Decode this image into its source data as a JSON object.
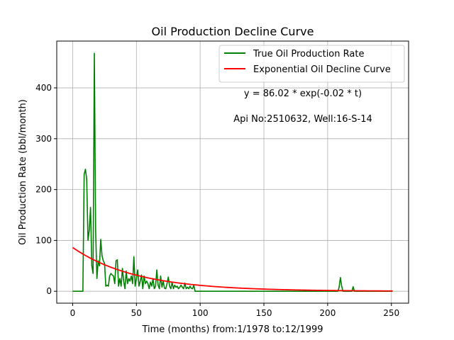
{
  "chart_data": {
    "type": "line",
    "title": "Oil Production Decline Curve",
    "xlabel": "Time (months) from:1/1978 to:12/1999",
    "ylabel": "Oil Production Rate (bbl/month)",
    "xlim": [
      -12.5,
      263.5
    ],
    "ylim": [
      -23.4,
      492
    ],
    "xticks": [
      0,
      50,
      100,
      150,
      200,
      250
    ],
    "yticks": [
      0,
      100,
      200,
      300,
      400
    ],
    "grid": true,
    "legend_position": "top-right",
    "annotations": [
      "y = 86.02 * exp(-0.02 * t)",
      "Api No:2510632, Well:16-S-14"
    ],
    "colors": {
      "true_rate": "#008000",
      "decline_curve": "#ff0000",
      "grid": "#b0b0b0"
    },
    "decline_model": {
      "a": 86.02,
      "b": 0.02,
      "t_start": 0,
      "t_end": 251
    },
    "series": [
      {
        "name": "True Oil Production Rate",
        "x": [
          0,
          1,
          2,
          3,
          4,
          5,
          6,
          7,
          8,
          9,
          10,
          11,
          12,
          13,
          14,
          15,
          16,
          17,
          18,
          19,
          20,
          21,
          22,
          23,
          24,
          25,
          26,
          27,
          28,
          29,
          30,
          31,
          32,
          33,
          34,
          35,
          36,
          37,
          38,
          39,
          40,
          41,
          42,
          43,
          44,
          45,
          46,
          47,
          48,
          49,
          50,
          51,
          52,
          53,
          54,
          55,
          56,
          57,
          58,
          59,
          60,
          61,
          62,
          63,
          64,
          65,
          66,
          67,
          68,
          69,
          70,
          71,
          72,
          73,
          74,
          75,
          76,
          77,
          78,
          79,
          80,
          81,
          82,
          83,
          84,
          85,
          86,
          87,
          88,
          89,
          90,
          91,
          92,
          93,
          94,
          95,
          96,
          97,
          98,
          99,
          100,
          120,
          150,
          180,
          200,
          208,
          209,
          210,
          211,
          212,
          213,
          218,
          219,
          220,
          221,
          222,
          223,
          230,
          240,
          251
        ],
        "values": [
          0,
          0,
          0,
          0,
          0,
          0,
          0,
          0,
          0,
          230,
          240,
          220,
          100,
          120,
          165,
          50,
          35,
          468,
          120,
          25,
          60,
          50,
          102,
          70,
          60,
          55,
          10,
          12,
          10,
          30,
          35,
          32,
          30,
          15,
          60,
          62,
          10,
          25,
          10,
          45,
          20,
          5,
          40,
          15,
          25,
          20,
          30,
          15,
          68,
          10,
          25,
          42,
          10,
          20,
          32,
          5,
          30,
          15,
          20,
          15,
          5,
          18,
          10,
          25,
          5,
          10,
          42,
          12,
          5,
          30,
          8,
          20,
          6,
          5,
          15,
          28,
          10,
          5,
          18,
          5,
          12,
          8,
          10,
          5,
          8,
          12,
          8,
          5,
          16,
          5,
          8,
          5,
          10,
          6,
          5,
          12,
          0,
          0,
          0,
          0,
          0,
          0,
          0,
          0,
          0,
          0,
          8,
          27,
          10,
          0,
          0,
          0,
          0,
          9,
          0,
          0,
          0,
          0,
          0,
          0
        ]
      },
      {
        "name": "Exponential Oil Decline Curve"
      }
    ]
  }
}
